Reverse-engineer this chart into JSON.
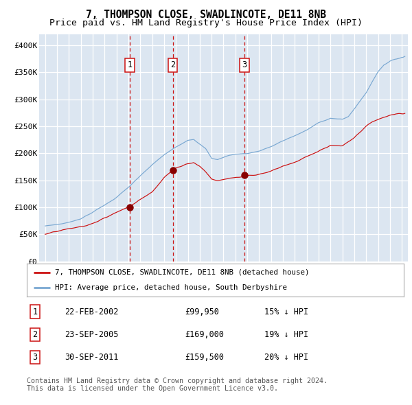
{
  "title": "7, THOMPSON CLOSE, SWADLINCOTE, DE11 8NB",
  "subtitle": "Price paid vs. HM Land Registry's House Price Index (HPI)",
  "title_fontsize": 10.5,
  "subtitle_fontsize": 9.5,
  "background_color": "#ffffff",
  "plot_bg_color": "#dce6f1",
  "grid_color": "#ffffff",
  "hpi_line_color": "#7aa8d2",
  "price_line_color": "#cc1111",
  "vline_color": "#cc1111",
  "sale_marker_color": "#880000",
  "sales": [
    {
      "date_num": 2002.13,
      "price": 99950,
      "label": "1",
      "date_str": "22-FEB-2002",
      "pct": "15%"
    },
    {
      "date_num": 2005.73,
      "price": 169000,
      "label": "2",
      "date_str": "23-SEP-2005",
      "pct": "19%"
    },
    {
      "date_num": 2011.75,
      "price": 159500,
      "label": "3",
      "date_str": "30-SEP-2011",
      "pct": "20%"
    }
  ],
  "ylim": [
    0,
    420000
  ],
  "xlim": [
    1994.5,
    2025.5
  ],
  "yticks": [
    0,
    50000,
    100000,
    150000,
    200000,
    250000,
    300000,
    350000,
    400000
  ],
  "ytick_labels": [
    "£0",
    "£50K",
    "£100K",
    "£150K",
    "£200K",
    "£250K",
    "£300K",
    "£350K",
    "£400K"
  ],
  "xticks": [
    1995,
    1996,
    1997,
    1998,
    1999,
    2000,
    2001,
    2002,
    2003,
    2004,
    2005,
    2006,
    2007,
    2008,
    2009,
    2010,
    2011,
    2012,
    2013,
    2014,
    2015,
    2016,
    2017,
    2018,
    2019,
    2020,
    2021,
    2022,
    2023,
    2024,
    2025
  ],
  "legend_label_red": "7, THOMPSON CLOSE, SWADLINCOTE, DE11 8NB (detached house)",
  "legend_label_blue": "HPI: Average price, detached house, South Derbyshire",
  "footnote": "Contains HM Land Registry data © Crown copyright and database right 2024.\nThis data is licensed under the Open Government Licence v3.0."
}
